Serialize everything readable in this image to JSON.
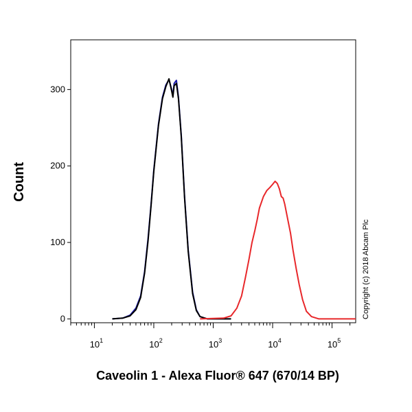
{
  "chart_data": {
    "type": "line",
    "xlabel": "Caveolin 1 - Alexa Fluor® 647 (670/14 BP)",
    "ylabel": "Count",
    "x_scale": "log",
    "xlim": [
      4,
      250000
    ],
    "ylim": [
      -5,
      365
    ],
    "y_ticks": [
      0,
      100,
      200,
      300
    ],
    "y_tick_labels": [
      "0",
      "100",
      "200",
      "300"
    ],
    "x_ticks": [
      {
        "value": 10,
        "base": "10",
        "exp": "1"
      },
      {
        "value": 100,
        "base": "10",
        "exp": "2"
      },
      {
        "value": 1000,
        "base": "10",
        "exp": "3"
      },
      {
        "value": 10000,
        "base": "10",
        "exp": "4"
      },
      {
        "value": 100000,
        "base": "10",
        "exp": "5"
      }
    ],
    "annotation": "Copyright (c) 2018 Abcam Plc",
    "series": [
      {
        "color": "#1a1aa8",
        "points": [
          [
            20,
            0
          ],
          [
            30,
            1
          ],
          [
            40,
            5
          ],
          [
            50,
            14
          ],
          [
            60,
            30
          ],
          [
            70,
            62
          ],
          [
            80,
            105
          ],
          [
            90,
            150
          ],
          [
            100,
            195
          ],
          [
            120,
            255
          ],
          [
            140,
            290
          ],
          [
            160,
            306
          ],
          [
            180,
            313
          ],
          [
            200,
            300
          ],
          [
            210,
            292
          ],
          [
            220,
            308
          ],
          [
            240,
            312
          ],
          [
            260,
            290
          ],
          [
            290,
            240
          ],
          [
            330,
            160
          ],
          [
            380,
            90
          ],
          [
            450,
            35
          ],
          [
            520,
            12
          ],
          [
            600,
            3
          ],
          [
            800,
            0
          ],
          [
            2000,
            0
          ]
        ]
      },
      {
        "color": "#000000",
        "points": [
          [
            20,
            0
          ],
          [
            30,
            1
          ],
          [
            40,
            4
          ],
          [
            50,
            12
          ],
          [
            60,
            28
          ],
          [
            70,
            60
          ],
          [
            80,
            102
          ],
          [
            90,
            148
          ],
          [
            100,
            193
          ],
          [
            120,
            253
          ],
          [
            140,
            288
          ],
          [
            160,
            304
          ],
          [
            180,
            314
          ],
          [
            200,
            298
          ],
          [
            210,
            290
          ],
          [
            220,
            305
          ],
          [
            240,
            308
          ],
          [
            260,
            288
          ],
          [
            290,
            238
          ],
          [
            330,
            158
          ],
          [
            380,
            88
          ],
          [
            450,
            33
          ],
          [
            520,
            11
          ],
          [
            600,
            3
          ],
          [
            800,
            0
          ],
          [
            2000,
            0
          ]
        ]
      },
      {
        "color": "#e8272a",
        "points": [
          [
            600,
            0
          ],
          [
            1500,
            1
          ],
          [
            2000,
            4
          ],
          [
            2500,
            14
          ],
          [
            3000,
            30
          ],
          [
            3500,
            55
          ],
          [
            4000,
            78
          ],
          [
            4500,
            100
          ],
          [
            5000,
            115
          ],
          [
            5500,
            130
          ],
          [
            6000,
            145
          ],
          [
            7000,
            160
          ],
          [
            8000,
            168
          ],
          [
            9000,
            172
          ],
          [
            10000,
            176
          ],
          [
            11000,
            180
          ],
          [
            12000,
            177
          ],
          [
            13000,
            170
          ],
          [
            14000,
            160
          ],
          [
            15000,
            158
          ],
          [
            16000,
            150
          ],
          [
            18000,
            130
          ],
          [
            20000,
            112
          ],
          [
            22000,
            90
          ],
          [
            25000,
            65
          ],
          [
            28000,
            45
          ],
          [
            32000,
            25
          ],
          [
            37000,
            10
          ],
          [
            45000,
            3
          ],
          [
            60000,
            0
          ],
          [
            250000,
            0
          ]
        ]
      }
    ]
  }
}
